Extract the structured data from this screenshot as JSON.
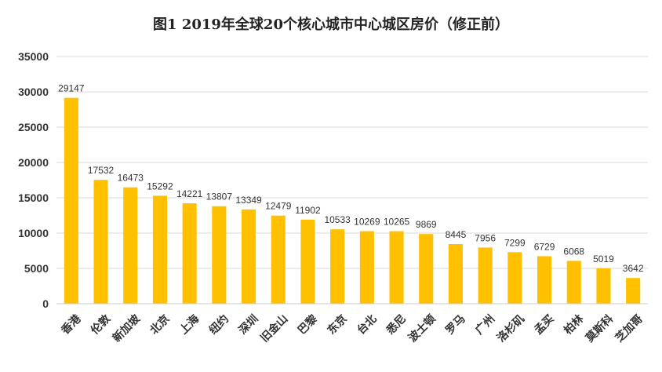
{
  "chart_data": {
    "type": "bar",
    "title": "图1   2019年全球20个核心城市中心城区房价（修正前）",
    "xlabel": "",
    "ylabel": "",
    "ylim": [
      0,
      35000
    ],
    "yticks": [
      0,
      5000,
      10000,
      15000,
      20000,
      25000,
      30000,
      35000
    ],
    "grid": true,
    "legend": "none",
    "bar_color": "#FFC000",
    "categories": [
      "香港",
      "伦敦",
      "新加坡",
      "北京",
      "上海",
      "纽约",
      "深圳",
      "旧金山",
      "巴黎",
      "东京",
      "台北",
      "悉尼",
      "波士顿",
      "罗马",
      "广州",
      "洛杉矶",
      "孟买",
      "柏林",
      "莫斯科",
      "芝加哥"
    ],
    "values": [
      29147,
      17532,
      16473,
      15292,
      14221,
      13807,
      13349,
      12479,
      11902,
      10533,
      10269,
      10265,
      9869,
      8445,
      7956,
      7299,
      6729,
      6068,
      5019,
      3642
    ]
  }
}
